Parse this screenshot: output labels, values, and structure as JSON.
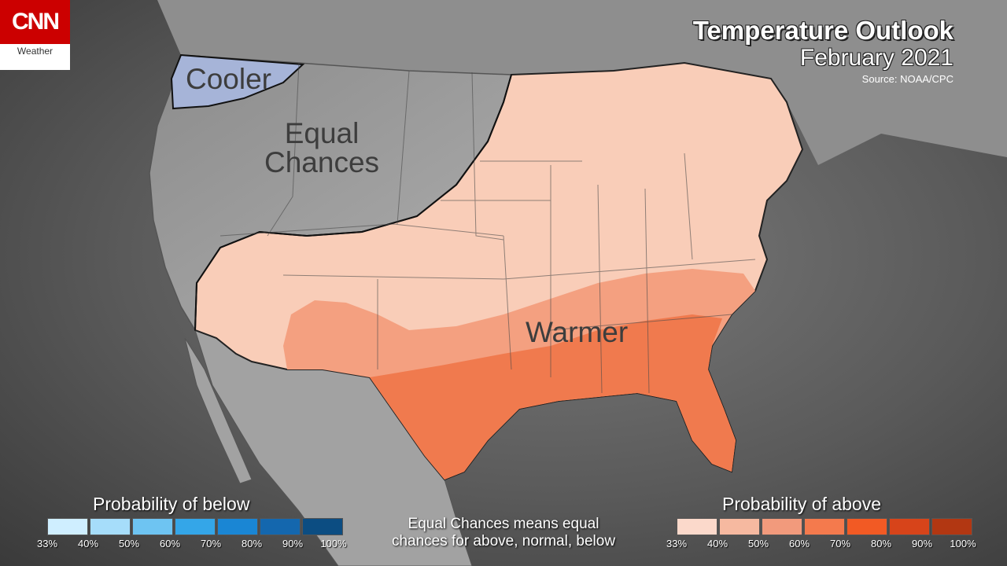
{
  "brand": {
    "logo_text": "CNN",
    "section": "Weather"
  },
  "header": {
    "title": "Temperature Outlook",
    "subtitle": "February 2021",
    "source": "Source: NOAA/CPC"
  },
  "regions": {
    "cooler": "Cooler",
    "equal_line1": "Equal",
    "equal_line2": "Chances",
    "warmer": "Warmer"
  },
  "legend_below": {
    "title": "Probability of below",
    "ticks": [
      "33%",
      "40%",
      "50%",
      "60%",
      "70%",
      "80%",
      "90%",
      "100%"
    ],
    "colors": [
      "#cfeeff",
      "#a6ddfa",
      "#6ec4f2",
      "#34a6e8",
      "#1a86d4",
      "#1467ae",
      "#0c4d82"
    ]
  },
  "legend_above": {
    "title": "Probability of above",
    "ticks": [
      "33%",
      "40%",
      "50%",
      "60%",
      "70%",
      "80%",
      "90%",
      "100%"
    ],
    "colors": [
      "#fbd9cb",
      "#f6b9a0",
      "#f29a7c",
      "#f47a4d",
      "#f25a24",
      "#d7441a",
      "#b23712"
    ]
  },
  "note": {
    "line1": "Equal Chances means equal",
    "line2": "chances for above, normal, below"
  },
  "colors": {
    "cooler_fill": "#a6b4d8",
    "warm_light": "#f9cdb8",
    "warm_mid": "#f4a080",
    "warm_strong": "#f07a4e",
    "land": "#9a9a9a",
    "water": "#555555"
  }
}
